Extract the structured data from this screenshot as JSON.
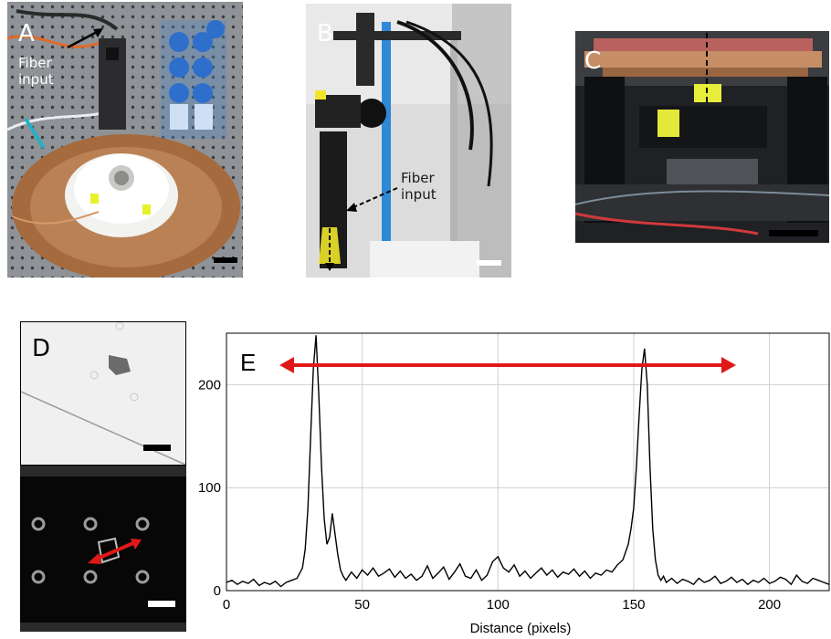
{
  "panels": {
    "a": {
      "label": "A",
      "annotation": "Fiber\ninput"
    },
    "b": {
      "label": "B",
      "annotation": "Fiber\ninput"
    },
    "c": {
      "label": "C"
    },
    "d": {
      "label": "D"
    },
    "e": {
      "label": "E"
    }
  },
  "colors": {
    "scalebar_light": "#ffffff",
    "scalebar_dark": "#000000",
    "arrow_red": "#e01818",
    "plot_line": "#000000",
    "grid": "#cfcfcf"
  },
  "icons": [
    "arrow-icon",
    "double-headed-arrow-icon"
  ],
  "chart_data": {
    "type": "line",
    "title": "",
    "xlabel": "Distance (pixels)",
    "ylabel": "",
    "xlim": [
      0,
      222
    ],
    "ylim": [
      0,
      250
    ],
    "xticks": [
      0,
      50,
      100,
      150,
      200
    ],
    "yticks": [
      0,
      100,
      200
    ],
    "grid": true,
    "legend": "none",
    "annotation": "double-headed red arrow spanning the two peaks",
    "series": [
      {
        "x": [
          0,
          2,
          4,
          6,
          8,
          10,
          12,
          14,
          16,
          18,
          20,
          22,
          24,
          26,
          28,
          29,
          30,
          31,
          32,
          33,
          34,
          35,
          36,
          37,
          38,
          39,
          40,
          41,
          42,
          43,
          44,
          46,
          48,
          50,
          52,
          54,
          56,
          58,
          60,
          62,
          64,
          66,
          68,
          70,
          72,
          74,
          76,
          78,
          80,
          82,
          84,
          86,
          88,
          90,
          92,
          94,
          96,
          98,
          100,
          102,
          104,
          106,
          108,
          110,
          112,
          114,
          116,
          118,
          120,
          122,
          124,
          126,
          128,
          130,
          132,
          134,
          136,
          138,
          140,
          142,
          144,
          146,
          148,
          149,
          150,
          151,
          152,
          153,
          154,
          155,
          156,
          157,
          158,
          159,
          160,
          161,
          162,
          164,
          166,
          168,
          170,
          172,
          174,
          176,
          178,
          180,
          182,
          184,
          186,
          188,
          190,
          192,
          194,
          196,
          198,
          200,
          202,
          204,
          206,
          208,
          210,
          212,
          214,
          216,
          218,
          220,
          222
        ],
        "y": [
          8,
          10,
          6,
          9,
          7,
          11,
          5,
          8,
          6,
          9,
          4,
          8,
          10,
          12,
          22,
          40,
          80,
          150,
          215,
          248,
          190,
          120,
          70,
          45,
          52,
          75,
          55,
          35,
          20,
          14,
          10,
          18,
          12,
          20,
          15,
          22,
          14,
          17,
          21,
          13,
          19,
          12,
          16,
          10,
          14,
          24,
          12,
          17,
          23,
          11,
          18,
          26,
          14,
          12,
          20,
          10,
          15,
          28,
          33,
          22,
          18,
          25,
          14,
          19,
          12,
          17,
          22,
          15,
          20,
          13,
          18,
          16,
          21,
          14,
          19,
          12,
          17,
          15,
          20,
          18,
          25,
          30,
          45,
          60,
          80,
          120,
          170,
          215,
          235,
          200,
          120,
          60,
          30,
          15,
          10,
          14,
          8,
          12,
          7,
          11,
          9,
          6,
          12,
          8,
          10,
          14,
          7,
          9,
          13,
          8,
          11,
          6,
          10,
          8,
          12,
          7,
          9,
          13,
          11,
          6,
          15,
          9,
          7,
          12,
          10,
          8,
          6
        ]
      }
    ]
  }
}
